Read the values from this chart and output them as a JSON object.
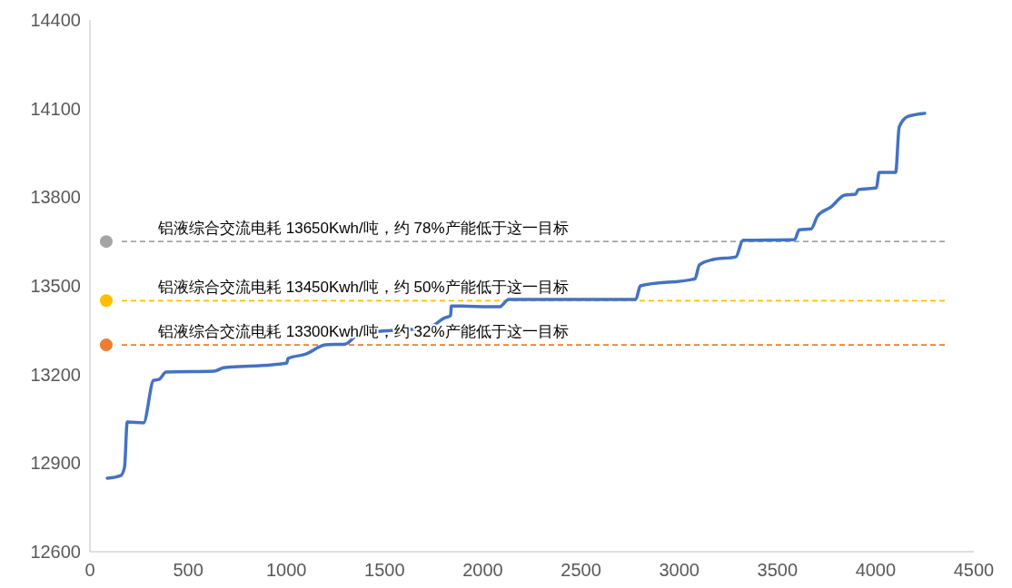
{
  "chart_data": {
    "type": "line",
    "xlim": [
      0,
      4500
    ],
    "xticks": [
      0,
      500,
      1000,
      1500,
      2000,
      2500,
      3000,
      3500,
      4000,
      4500
    ],
    "ylim": [
      12600,
      14400
    ],
    "yticks": [
      12600,
      12900,
      13200,
      13500,
      13800,
      14100,
      14400
    ],
    "grid": false,
    "series": [
      {
        "color": "#4472c4",
        "x": [
          88,
          157,
          176,
          190,
          273,
          324,
          351,
          388,
          633,
          680,
          929,
          1003,
          1008,
          1100,
          1198,
          1300,
          1369,
          1531,
          1716,
          1808,
          1836,
          1840,
          2085,
          2132,
          2779,
          2802,
          3080,
          3103,
          3172,
          3288,
          3325,
          3588,
          3611,
          3672,
          3704,
          3773,
          3843,
          3898,
          3912,
          4004,
          4018,
          4102,
          4120,
          4166,
          4250
        ],
        "values": [
          12849,
          12858,
          12886,
          13039,
          13036,
          13180,
          13183,
          13208,
          13211,
          13223,
          13233,
          13239,
          13254,
          13269,
          13300,
          13303,
          13337,
          13349,
          13356,
          13392,
          13399,
          13432,
          13429,
          13454,
          13454,
          13500,
          13524,
          13571,
          13589,
          13598,
          13654,
          13657,
          13690,
          13693,
          13736,
          13767,
          13807,
          13810,
          13826,
          13832,
          13884,
          13884,
          14038,
          14074,
          14084
        ]
      },
      {
        "type": "scatter",
        "color": "#a5a5a5",
        "x": [
          83
        ],
        "values": [
          13650
        ]
      },
      {
        "type": "scatter",
        "color": "#ffc000",
        "x": [
          83
        ],
        "values": [
          13450
        ]
      },
      {
        "type": "scatter",
        "color": "#ed7d31",
        "x": [
          83
        ],
        "values": [
          13300
        ]
      }
    ],
    "ref_lines": [
      {
        "axis": "y",
        "value": 13650,
        "label": "铝液综合交流电耗 13650Kwh/吨，约 78%产能低于这一目标",
        "color": "#a5a5a5",
        "line_style": "dashed"
      },
      {
        "axis": "y",
        "value": 13450,
        "label": "铝液综合交流电耗 13450Kwh/吨，约 50%产能低于这一目标",
        "color": "#ffc000",
        "line_style": "dashed"
      },
      {
        "axis": "y",
        "value": 13300,
        "label": "铝液综合交流电耗 13300Kwh/吨，约 32%产能低于这一目标",
        "color": "#ed7d31",
        "line_style": "dashed"
      }
    ]
  }
}
